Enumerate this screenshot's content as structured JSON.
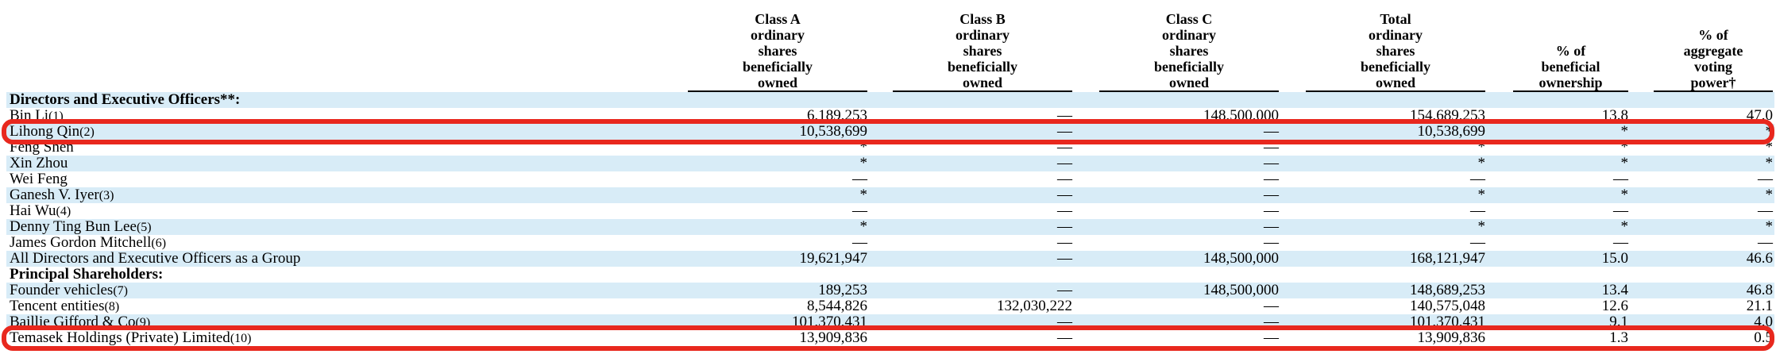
{
  "columns": [
    {
      "key": "class_a",
      "header": "Class A\nordinary\nshares\nbeneficially\nowned"
    },
    {
      "key": "class_b",
      "header": "Class B\nordinary\nshares\nbeneficially\nowned"
    },
    {
      "key": "class_c",
      "header": "Class C\nordinary\nshares\nbeneficially\nowned"
    },
    {
      "key": "total",
      "header": "Total\nordinary\nshares\nbeneficially\nowned"
    },
    {
      "key": "pct_own",
      "header": "% of\nbeneficial\nownership"
    },
    {
      "key": "pct_vote",
      "header": "% of\naggregate\nvoting\npower†"
    }
  ],
  "rows": [
    {
      "type": "section",
      "label": "Directors and Executive Officers**:",
      "shaded": true
    },
    {
      "type": "data",
      "label": "Bin Li",
      "note": "(1)",
      "shaded": false,
      "values": [
        "6,189,253",
        "—",
        "148,500,000",
        "154,689,253",
        "13.8",
        "47.0"
      ]
    },
    {
      "type": "data",
      "label": "Lihong Qin",
      "note": "(2)",
      "shaded": true,
      "highlighted": true,
      "values": [
        "10,538,699",
        "—",
        "—",
        "10,538,699",
        "*",
        "*"
      ]
    },
    {
      "type": "data",
      "label": "Feng Shen",
      "note": "",
      "shaded": false,
      "values": [
        "*",
        "—",
        "—",
        "*",
        "*",
        "*"
      ]
    },
    {
      "type": "data",
      "label": "Xin Zhou",
      "note": "",
      "shaded": true,
      "values": [
        "*",
        "—",
        "—",
        "*",
        "*",
        "*"
      ]
    },
    {
      "type": "data",
      "label": "Wei Feng",
      "note": "",
      "shaded": false,
      "values": [
        "—",
        "—",
        "—",
        "—",
        "—",
        "—"
      ]
    },
    {
      "type": "data",
      "label": "Ganesh V. Iyer",
      "note": "(3)",
      "shaded": true,
      "values": [
        "*",
        "—",
        "—",
        "*",
        "*",
        "*"
      ]
    },
    {
      "type": "data",
      "label": "Hai Wu",
      "note": "(4)",
      "shaded": false,
      "values": [
        "—",
        "—",
        "—",
        "—",
        "—",
        "—"
      ]
    },
    {
      "type": "data",
      "label": "Denny Ting Bun Lee",
      "note": "(5)",
      "shaded": true,
      "values": [
        "*",
        "—",
        "—",
        "*",
        "*",
        "*"
      ]
    },
    {
      "type": "data",
      "label": "James Gordon Mitchell",
      "note": "(6)",
      "shaded": false,
      "values": [
        "—",
        "—",
        "—",
        "—",
        "—",
        "—"
      ]
    },
    {
      "type": "data",
      "label": "All Directors and Executive  Officers as a Group",
      "note": "",
      "shaded": true,
      "values": [
        "19,621,947",
        "—",
        "148,500,000",
        "168,121,947",
        "15.0",
        "46.6"
      ]
    },
    {
      "type": "section",
      "label": "Principal Shareholders:",
      "shaded": false
    },
    {
      "type": "data",
      "label": "Founder vehicles",
      "note": "(7)",
      "shaded": true,
      "values": [
        "189,253",
        "—",
        "148,500,000",
        "148,689,253",
        "13.4",
        "46.8"
      ]
    },
    {
      "type": "data",
      "label": "Tencent entities",
      "note": "(8)",
      "shaded": false,
      "values": [
        "8,544,826",
        "132,030,222",
        "—",
        "140,575,048",
        "12.6",
        "21.1"
      ]
    },
    {
      "type": "data",
      "label": "Baillie Gifford & Co",
      "note": "(9)",
      "shaded": true,
      "values": [
        "101,370,431",
        "—",
        "—",
        "101,370,431",
        "9.1",
        "4.0"
      ]
    },
    {
      "type": "data",
      "label": "Temasek Holdings (Private) Limited",
      "note": "(10)",
      "shaded": false,
      "highlighted": true,
      "values": [
        "13,909,836",
        "—",
        "—",
        "13,909,836",
        "1.3",
        "0.5"
      ]
    }
  ],
  "colors": {
    "row_shade": "#d8ecf7",
    "highlight": "#e8281e"
  }
}
